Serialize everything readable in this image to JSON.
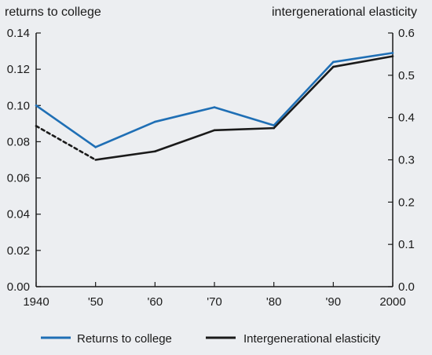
{
  "chart_data": {
    "type": "line",
    "x": [
      "1940",
      "'50",
      "'60",
      "'70",
      "'80",
      "'90",
      "2000"
    ],
    "y_left_label": "returns to college",
    "y_right_label": "intergenerational elasticity",
    "y_left_ticks": [
      "0.00",
      "0.02",
      "0.04",
      "0.06",
      "0.08",
      "0.10",
      "0.12",
      "0.14"
    ],
    "y_right_ticks": [
      "0.0",
      "0.1",
      "0.2",
      "0.3",
      "0.4",
      "0.5",
      "0.6"
    ],
    "ylim_left": [
      0,
      0.14
    ],
    "ylim_right": [
      0,
      0.6
    ],
    "grid": false,
    "legend_position": "bottom",
    "series": [
      {
        "name": "Returns to college",
        "axis": "left",
        "color": "#1f6fb5",
        "values": [
          0.1,
          0.077,
          0.091,
          0.099,
          0.089,
          0.124,
          0.129
        ]
      },
      {
        "name": "Intergenerational elasticity",
        "axis": "right",
        "color": "#1a1a1a",
        "values": [
          0.38,
          0.3,
          0.32,
          0.37,
          0.375,
          0.52,
          0.545
        ],
        "dashed_segments": [
          0
        ]
      }
    ]
  }
}
